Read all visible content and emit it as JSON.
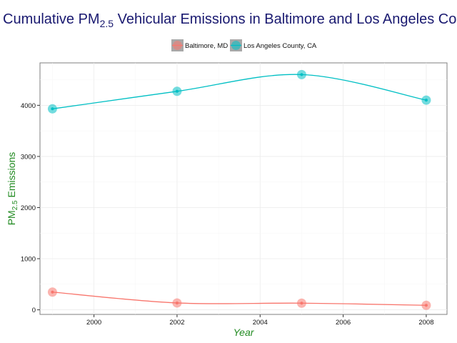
{
  "chart_data": {
    "type": "line",
    "title": {
      "before": "Cumulative PM",
      "sub": "2.5",
      "after": " Vehicular Emissions in Baltimore and Los Angeles County"
    },
    "xlabel": "Year",
    "ylabel": {
      "before": "PM",
      "sub": "2.5",
      "after": " Emissions"
    },
    "x": [
      1999,
      2002,
      2005,
      2008
    ],
    "series": [
      {
        "name": "Baltimore, MD",
        "values": [
          346.82,
          134.31,
          130.43,
          88.28
        ],
        "color": "#f8766d"
      },
      {
        "name": "Los Angeles County, CA",
        "values": [
          3931.12,
          4273.71,
          4601.41,
          4101.32
        ],
        "color": "#00bfc4"
      }
    ],
    "xlim": [
      1998.7,
      2008.5
    ],
    "ylim": [
      -90,
      4830
    ],
    "x_ticks": [
      "2000",
      "2002",
      "2004",
      "2006",
      "2008"
    ],
    "y_ticks": [
      "0",
      "1000",
      "2000",
      "3000",
      "4000"
    ],
    "grid": true,
    "legend_position": "top"
  }
}
